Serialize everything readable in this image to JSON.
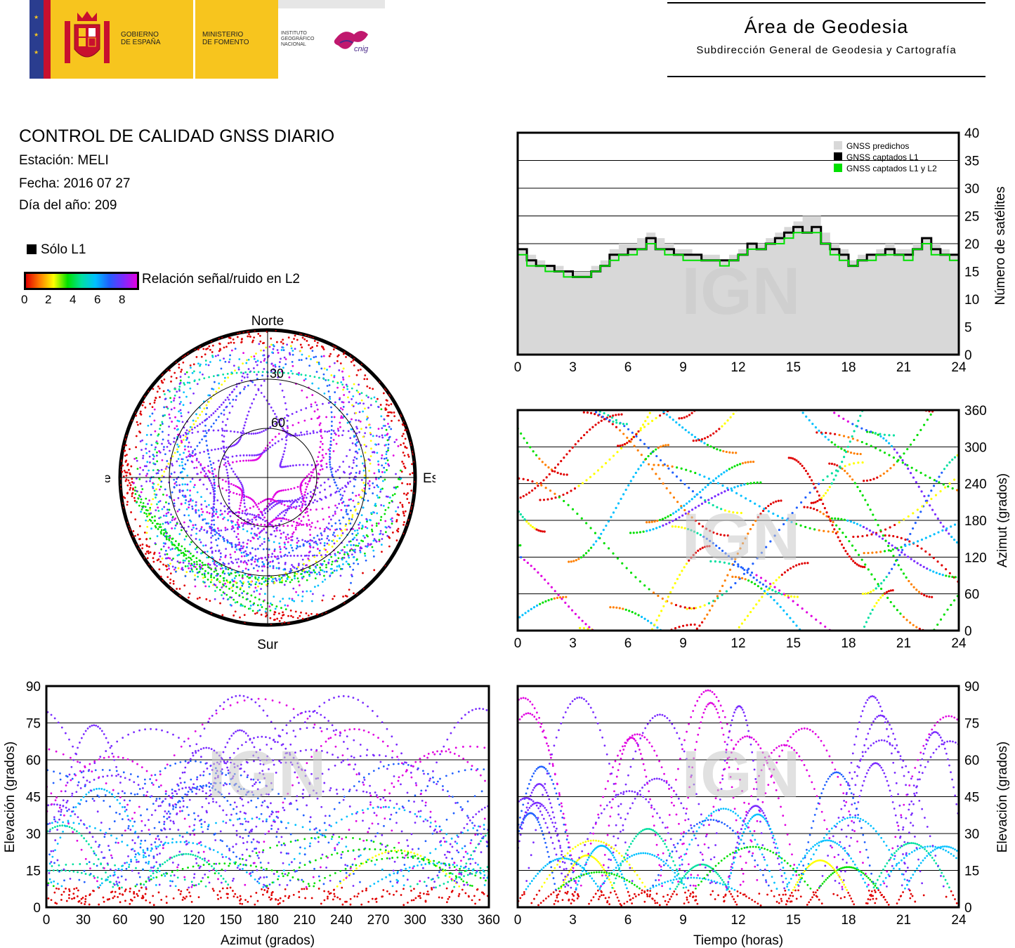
{
  "header": {
    "gov_line1": "GOBIERNO",
    "gov_line2": "DE ESPAÑA",
    "ministry_line1": "MINISTERIO",
    "ministry_line2": "DE FOMENTO",
    "institute_line1": "INSTITUTO",
    "institute_line2": "GEOGRÁFICO",
    "institute_line3": "NACIONAL",
    "cnig_logo_text": "cnig",
    "area_title": "Área de Geodesia",
    "area_subtitle": "Subdirección General de Geodesia y Cartografía"
  },
  "report": {
    "title": "CONTROL DE CALIDAD GNSS DIARIO",
    "station": "Estación: MELI",
    "date": "Fecha: 2016 07 27",
    "doy": "Día del año: 209"
  },
  "legend": {
    "l1_only": "Sólo L1",
    "snr_label": "Relación señal/ruido en L2",
    "snr_ticks": [
      "0",
      "2",
      "4",
      "6",
      "8"
    ],
    "snr_colors": [
      "#e00000",
      "#ff7f00",
      "#ffff00",
      "#00e000",
      "#00e0a0",
      "#00c0ff",
      "#2060ff",
      "#7a2bff",
      "#e000e0"
    ]
  },
  "watermark": "IGN",
  "chart_data": [
    {
      "id": "sky-plot",
      "type": "scatter",
      "title": "",
      "directions": {
        "north": "Norte",
        "south": "Sur",
        "east": "Este",
        "west": "Oeste"
      },
      "elevation_rings": [
        "30",
        "60"
      ],
      "note_color_scale": "SNR L2 0-8"
    },
    {
      "id": "satellites-count",
      "type": "area",
      "ylabel": "Número de satélites",
      "xlabel": "",
      "xlim": [
        0,
        24
      ],
      "ylim": [
        0,
        40
      ],
      "xticks": [
        "0",
        "3",
        "6",
        "9",
        "12",
        "15",
        "18",
        "21",
        "24"
      ],
      "yticks": [
        "0",
        "5",
        "10",
        "15",
        "20",
        "25",
        "30",
        "35",
        "40"
      ],
      "legend": [
        "GNSS predichos",
        "GNSS captados L1",
        "GNSS captados L1 y L2"
      ],
      "legend_position": "top-right",
      "grid": true,
      "series": [
        {
          "name": "GNSS predichos",
          "color": "#d8d8d8",
          "x": [
            0,
            0.5,
            1,
            1.5,
            2,
            2.5,
            3,
            3.5,
            4,
            4.5,
            5,
            5.5,
            6,
            6.5,
            7,
            7.5,
            8,
            8.5,
            9,
            9.5,
            10,
            10.5,
            11,
            11.5,
            12,
            12.5,
            13,
            13.5,
            14,
            14.5,
            15,
            15.5,
            16,
            16.5,
            17,
            17.5,
            18,
            18.5,
            19,
            19.5,
            20,
            20.5,
            21,
            21.5,
            22,
            22.5,
            23,
            23.5,
            24
          ],
          "values": [
            19,
            18,
            17,
            16,
            16,
            15,
            15,
            15,
            16,
            17,
            19,
            20,
            20,
            21,
            22,
            21,
            20,
            19,
            19,
            18,
            18,
            18,
            17,
            18,
            19,
            20,
            20,
            21,
            22,
            23,
            24,
            25,
            25,
            22,
            20,
            19,
            17,
            18,
            18,
            19,
            20,
            19,
            19,
            20,
            21,
            20,
            19,
            18,
            18
          ]
        },
        {
          "name": "GNSS captados L1",
          "color": "#000000",
          "x": [
            0,
            0.5,
            1,
            1.5,
            2,
            2.5,
            3,
            3.5,
            4,
            4.5,
            5,
            5.5,
            6,
            6.5,
            7,
            7.5,
            8,
            8.5,
            9,
            9.5,
            10,
            10.5,
            11,
            11.5,
            12,
            12.5,
            13,
            13.5,
            14,
            14.5,
            15,
            15.5,
            16,
            16.5,
            17,
            17.5,
            18,
            18.5,
            19,
            19.5,
            20,
            20.5,
            21,
            21.5,
            22,
            22.5,
            23,
            23.5,
            24
          ],
          "values": [
            19,
            17,
            16,
            16,
            15,
            15,
            14,
            14,
            15,
            16,
            18,
            18,
            19,
            19,
            21,
            19,
            19,
            18,
            18,
            18,
            17,
            17,
            17,
            17,
            18,
            20,
            19,
            20,
            21,
            22,
            23,
            22,
            23,
            20,
            19,
            18,
            16,
            17,
            18,
            18,
            19,
            18,
            18,
            19,
            21,
            19,
            18,
            18,
            17
          ]
        },
        {
          "name": "GNSS captados L1 y L2",
          "color": "#00e000",
          "x": [
            0,
            0.5,
            1,
            1.5,
            2,
            2.5,
            3,
            3.5,
            4,
            4.5,
            5,
            5.5,
            6,
            6.5,
            7,
            7.5,
            8,
            8.5,
            9,
            9.5,
            10,
            10.5,
            11,
            11.5,
            12,
            12.5,
            13,
            13.5,
            14,
            14.5,
            15,
            15.5,
            16,
            16.5,
            17,
            17.5,
            18,
            18.5,
            19,
            19.5,
            20,
            20.5,
            21,
            21.5,
            22,
            22.5,
            23,
            23.5,
            24
          ],
          "values": [
            18,
            16,
            16,
            15,
            15,
            14,
            14,
            14,
            15,
            16,
            17,
            18,
            18,
            19,
            20,
            19,
            18,
            18,
            17,
            17,
            17,
            17,
            16,
            17,
            18,
            19,
            19,
            20,
            20,
            21,
            22,
            22,
            22,
            20,
            18,
            17,
            16,
            17,
            17,
            18,
            18,
            18,
            17,
            19,
            20,
            18,
            18,
            17,
            17
          ]
        }
      ]
    },
    {
      "id": "azimuth-time",
      "type": "scatter",
      "ylabel": "Azimut (grados)",
      "xlabel": "",
      "xlim": [
        0,
        24
      ],
      "ylim": [
        0,
        360
      ],
      "xticks": [
        "0",
        "3",
        "6",
        "9",
        "12",
        "15",
        "18",
        "21",
        "24"
      ],
      "yticks": [
        "0",
        "60",
        "120",
        "180",
        "240",
        "300",
        "360"
      ],
      "grid": true
    },
    {
      "id": "elevation-azimuth",
      "type": "scatter",
      "ylabel": "Elevación (grados)",
      "xlabel": "Azimut (grados)",
      "xlim": [
        0,
        360
      ],
      "ylim": [
        0,
        90
      ],
      "xticks": [
        "0",
        "30",
        "60",
        "90",
        "120",
        "150",
        "180",
        "210",
        "240",
        "270",
        "300",
        "330",
        "360"
      ],
      "yticks": [
        "0",
        "15",
        "30",
        "45",
        "60",
        "75",
        "90"
      ],
      "grid": true
    },
    {
      "id": "elevation-time",
      "type": "scatter",
      "ylabel": "Elevación (grados)",
      "xlabel": "Tiempo (horas)",
      "xlim": [
        0,
        24
      ],
      "ylim": [
        0,
        90
      ],
      "xticks": [
        "0",
        "3",
        "6",
        "9",
        "12",
        "15",
        "18",
        "21",
        "24"
      ],
      "yticks": [
        "0",
        "15",
        "30",
        "45",
        "60",
        "75",
        "90"
      ],
      "grid": true
    }
  ]
}
